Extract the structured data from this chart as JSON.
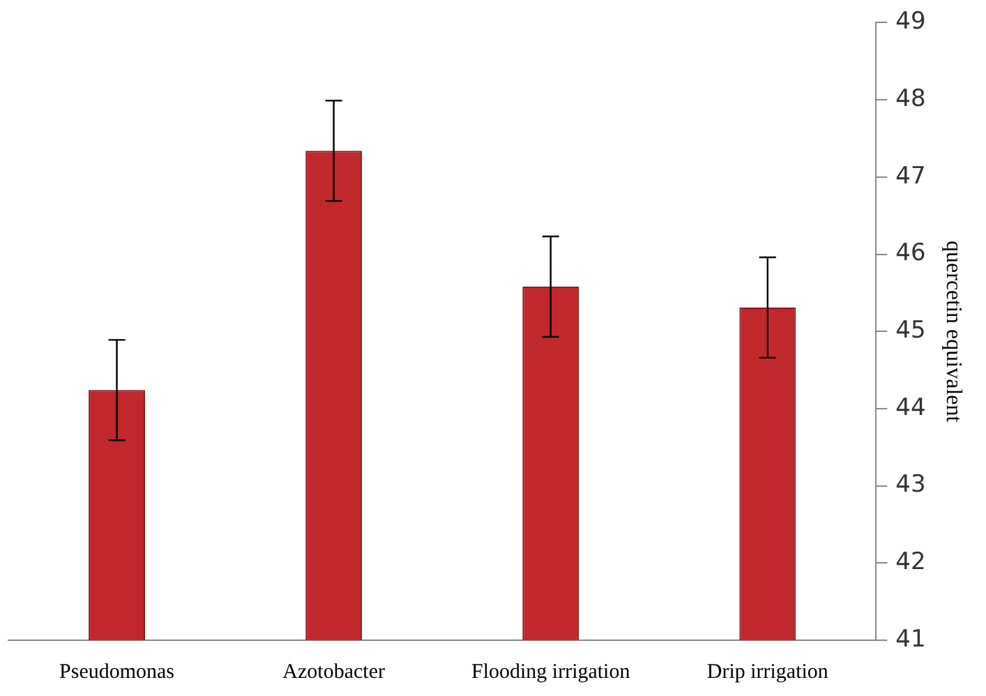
{
  "chart_data": {
    "type": "bar",
    "ylabel": "quercetin equivalent",
    "categories": [
      "Pseudomonas",
      "Azotobacter",
      "Flooding irrigation",
      "Drip irrigation"
    ],
    "values": [
      44.24,
      47.34,
      45.58,
      45.31
    ],
    "errors": [
      0.65,
      0.65,
      0.65,
      0.65
    ],
    "color": "#c0282b",
    "ylim": [
      41,
      49
    ],
    "yticks": [
      41,
      42,
      43,
      44,
      45,
      46,
      47,
      48,
      49
    ],
    "grid": false,
    "legend": false
  }
}
